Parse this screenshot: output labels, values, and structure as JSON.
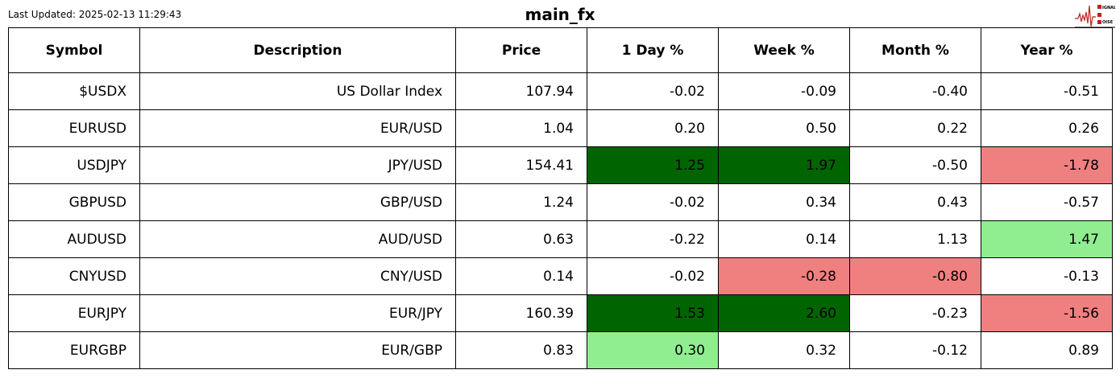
{
  "header": {
    "last_updated": "Last Updated: 2025-02-13 11:29:43",
    "title": "main_fx",
    "logo_text": "SIGNAL 2 NOISE"
  },
  "colors": {
    "strong_up": "#006400",
    "up": "#90ee90",
    "down": "#f08080",
    "neutral": "#ffffff"
  },
  "chart_data": {
    "type": "table",
    "columns": [
      "Symbol",
      "Description",
      "Price",
      "1 Day %",
      "Week %",
      "Month %",
      "Year %"
    ],
    "rows": [
      [
        "$USDX",
        "US Dollar Index",
        "107.94",
        "-0.02",
        "-0.09",
        "-0.40",
        "-0.51"
      ],
      [
        "EURUSD",
        "EUR/USD",
        "1.04",
        "0.20",
        "0.50",
        "0.22",
        "0.26"
      ],
      [
        "USDJPY",
        "JPY/USD",
        "154.41",
        "1.25",
        "1.97",
        "-0.50",
        "-1.78"
      ],
      [
        "GBPUSD",
        "GBP/USD",
        "1.24",
        "-0.02",
        "0.34",
        "0.43",
        "-0.57"
      ],
      [
        "AUDUSD",
        "AUD/USD",
        "0.63",
        "-0.22",
        "0.14",
        "1.13",
        "1.47"
      ],
      [
        "CNYUSD",
        "CNY/USD",
        "0.14",
        "-0.02",
        "-0.28",
        "-0.80",
        "-0.13"
      ],
      [
        "EURJPY",
        "EUR/JPY",
        "160.39",
        "1.53",
        "2.60",
        "-0.23",
        "-1.56"
      ],
      [
        "EURGBP",
        "EUR/GBP",
        "0.83",
        "0.30",
        "0.32",
        "-0.12",
        "0.89"
      ]
    ],
    "cell_highlights": [
      [
        "",
        "",
        "",
        "",
        "",
        "",
        ""
      ],
      [
        "",
        "",
        "",
        "",
        "",
        "",
        ""
      ],
      [
        "",
        "",
        "",
        "strong_up",
        "strong_up",
        "",
        "down"
      ],
      [
        "",
        "",
        "",
        "",
        "",
        "",
        ""
      ],
      [
        "",
        "",
        "",
        "",
        "",
        "",
        "up"
      ],
      [
        "",
        "",
        "",
        "",
        "down",
        "down",
        ""
      ],
      [
        "",
        "",
        "",
        "strong_up",
        "strong_up",
        "",
        "down"
      ],
      [
        "",
        "",
        "",
        "up",
        "",
        "",
        ""
      ]
    ]
  }
}
